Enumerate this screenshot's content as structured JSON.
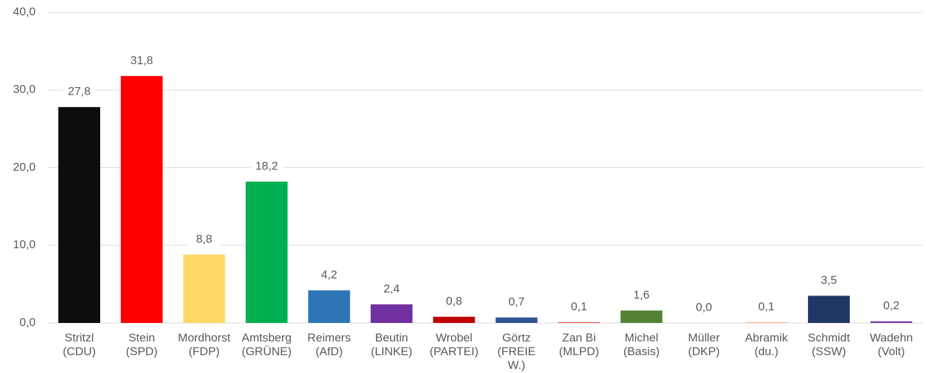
{
  "chart_data": {
    "type": "bar",
    "categories": [
      [
        "Stritzl",
        "(CDU)"
      ],
      [
        "Stein",
        "(SPD)"
      ],
      [
        "Mordhorst",
        "(FDP)"
      ],
      [
        "Amtsberg",
        "(GRÜNE)"
      ],
      [
        "Reimers",
        "(AfD)"
      ],
      [
        "Beutin",
        "(LINKE)"
      ],
      [
        "Wrobel",
        "(PARTEI)"
      ],
      [
        "Görtz",
        "(FREIE",
        "W.)"
      ],
      [
        "Zan Bi",
        "(MLPD)"
      ],
      [
        "Michel",
        "(Basis)"
      ],
      [
        "Müller",
        "(DKP)"
      ],
      [
        "Abramik",
        "(du.)"
      ],
      [
        "Schmidt",
        "(SSW)"
      ],
      [
        "Wadehn",
        "(Volt)"
      ]
    ],
    "values": [
      27.8,
      31.8,
      8.8,
      18.2,
      4.2,
      2.4,
      0.8,
      0.7,
      0.1,
      1.6,
      0.0,
      0.1,
      3.5,
      0.2
    ],
    "value_labels": [
      "27,8",
      "31,8",
      "8,8",
      "18,2",
      "4,2",
      "2,4",
      "0,8",
      "0,7",
      "0,1",
      "1,6",
      "0,0",
      "0,1",
      "3,5",
      "0,2"
    ],
    "colors": [
      "#0d0d0d",
      "#ff0000",
      "#ffd966",
      "#00b050",
      "#2e75b6",
      "#7030a0",
      "#c00000",
      "#2f5597",
      "#e04040",
      "#548235",
      "#7f7f7f",
      "#f4b183",
      "#203864",
      "#7030a0"
    ],
    "ylim": [
      0,
      40
    ],
    "yticks": [
      {
        "value": 0,
        "label": "0,0"
      },
      {
        "value": 10,
        "label": "10,0"
      },
      {
        "value": 20,
        "label": "20,0"
      },
      {
        "value": 30,
        "label": "30,0"
      },
      {
        "value": 40,
        "label": "40,0"
      }
    ],
    "grid": true
  }
}
